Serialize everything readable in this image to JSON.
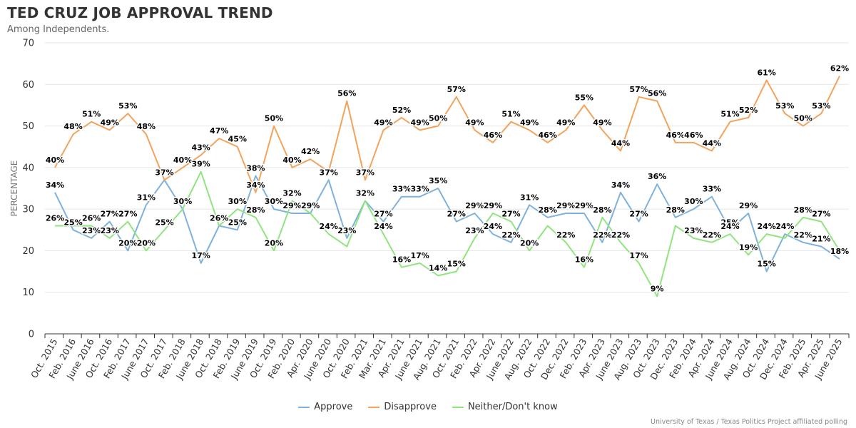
{
  "chart_data": {
    "type": "line",
    "title": "TED CRUZ JOB APPROVAL TREND",
    "subtitle": "Among Independents.",
    "ylabel": "PERCENTAGE",
    "xlabel": "",
    "ylim": [
      0,
      70
    ],
    "yticks": [
      0,
      10,
      20,
      30,
      40,
      50,
      60,
      70
    ],
    "grid": true,
    "legend_position": "bottom",
    "source": "University of Texas / Texas Politics Project affiliated polling",
    "categories": [
      "Oct. 2015",
      "Feb. 2016",
      "June 2016",
      "Oct. 2016",
      "Feb. 2017",
      "June 2017",
      "Oct. 2017",
      "Feb. 2018",
      "June 2018",
      "Oct. 2018",
      "Feb. 2019",
      "June 2019",
      "Oct. 2019",
      "Feb. 2020",
      "Apr. 2020",
      "June 2020",
      "Oct. 2020",
      "Feb. 2021",
      "Mar. 2021",
      "Apr. 2021",
      "June 2021",
      "Aug. 2021",
      "Oct. 2021",
      "Feb. 2022",
      "Apr. 2022",
      "June 2022",
      "Aug. 2022",
      "Oct. 2022",
      "Dec. 2022",
      "Feb. 2023",
      "Apr. 2023",
      "June 2023",
      "Aug. 2023",
      "Oct. 2023",
      "Dec. 2023",
      "Feb. 2024",
      "Apr. 2024",
      "June 2024",
      "Aug. 2024",
      "Oct. 2024",
      "Dec. 2024",
      "Feb. 2025",
      "Apr. 2025",
      "June 2025"
    ],
    "series": [
      {
        "name": "Approve",
        "color": "#7eb2dd",
        "values": [
          34,
          25,
          23,
          27,
          20,
          31,
          37,
          30,
          17,
          26,
          25,
          38,
          30,
          29,
          29,
          37,
          23,
          32,
          27,
          33,
          33,
          35,
          27,
          29,
          24,
          22,
          31,
          28,
          29,
          29,
          22,
          34,
          27,
          36,
          28,
          30,
          33,
          25,
          29,
          15,
          24,
          22,
          21,
          18
        ],
        "labels": [
          "34%",
          "25%",
          "23%",
          "27%",
          "20%",
          "31%",
          "37%",
          "30%",
          "17%",
          "26%",
          "25%",
          "38%",
          "30%",
          "29%",
          "29%",
          "37%",
          "23%",
          "32%",
          "27%",
          "33%",
          "33%",
          "35%",
          "27%",
          "29%",
          "24%",
          "22%",
          "31%",
          "28%",
          "29%",
          "29%",
          "22%",
          "34%",
          "27%",
          "36%",
          "28%",
          "30%",
          "33%",
          "25%",
          "29%",
          "15%",
          "24%",
          "22%",
          "21%",
          "18%"
        ]
      },
      {
        "name": "Disapprove",
        "color": "#f3a35c",
        "values": [
          40,
          48,
          51,
          49,
          53,
          48,
          37,
          40,
          43,
          47,
          45,
          34,
          50,
          40,
          42,
          39,
          56,
          37,
          49,
          52,
          49,
          50,
          57,
          49,
          46,
          51,
          49,
          46,
          49,
          55,
          49,
          44,
          57,
          56,
          46,
          46,
          44,
          51,
          52,
          61,
          53,
          50,
          53,
          62
        ],
        "labels": [
          "40%",
          "48%",
          "51%",
          "49%",
          "53%",
          "48%",
          "",
          "40%",
          "43%",
          "47%",
          "45%",
          "34%",
          "50%",
          "40%",
          "42%",
          "",
          "56%",
          "37%",
          "49%",
          "52%",
          "49%",
          "50%",
          "57%",
          "49%",
          "46%",
          "51%",
          "49%",
          "46%",
          "49%",
          "55%",
          "49%",
          "44%",
          "57%",
          "56%",
          "46%",
          "46%",
          "44%",
          "51%",
          "52%",
          "61%",
          "53%",
          "50%",
          "53%",
          "62%"
        ]
      },
      {
        "name": "Neither/Don't know",
        "color": "#90e57f",
        "values": [
          26,
          26,
          26,
          23,
          27,
          20,
          25,
          30,
          39,
          26,
          30,
          28,
          20,
          32,
          29,
          24,
          21,
          32,
          24,
          16,
          17,
          14,
          15,
          23,
          29,
          27,
          20,
          26,
          22,
          16,
          28,
          22,
          17,
          9,
          26,
          23,
          22,
          24,
          19,
          24,
          23,
          28,
          27,
          20
        ],
        "labels": [
          "26%",
          "",
          "26%",
          "23%",
          "27%",
          "20%",
          "25%",
          "30%",
          "39%",
          "26%",
          "30%",
          "28%",
          "20%",
          "32%",
          "29%",
          "24%",
          "",
          "32%",
          "24%",
          "16%",
          "17%",
          "14%",
          "15%",
          "23%",
          "29%",
          "27%",
          "20%",
          "",
          "22%",
          "16%",
          "28%",
          "22%",
          "17%",
          "9%",
          "",
          "23%",
          "22%",
          "24%",
          "19%",
          "24%",
          "",
          "28%",
          "27%",
          ""
        ]
      }
    ]
  }
}
